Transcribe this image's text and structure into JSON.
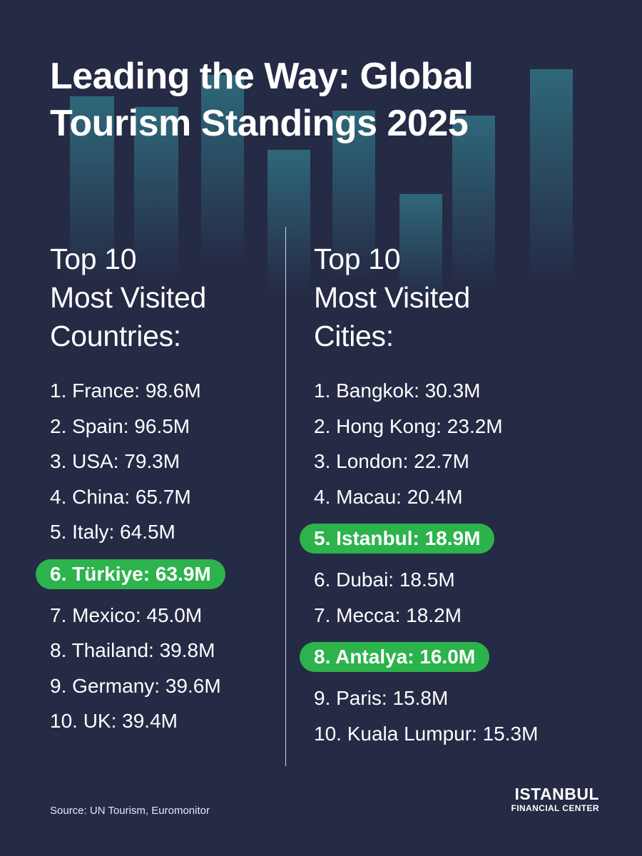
{
  "title": "Leading the Way: Global Tourism Standings 2025",
  "countries": {
    "heading": [
      "Top 10",
      "Most Visited",
      "Countries:"
    ],
    "items": [
      {
        "text": "1. France: 98.6M"
      },
      {
        "text": "2. Spain: 96.5M"
      },
      {
        "text": "3. USA: 79.3M"
      },
      {
        "text": "4. China: 65.7M"
      },
      {
        "text": "5. Italy: 64.5M"
      },
      {
        "text": "6. Türkiye: 63.9M",
        "highlight": true
      },
      {
        "text": "7. Mexico: 45.0M"
      },
      {
        "text": "8. Thailand: 39.8M"
      },
      {
        "text": "9. Germany: 39.6M"
      },
      {
        "text": "10. UK: 39.4M"
      }
    ]
  },
  "cities": {
    "heading": [
      "Top 10",
      "Most Visited",
      "Cities:"
    ],
    "items": [
      {
        "text": "1. Bangkok: 30.3M"
      },
      {
        "text": "2. Hong Kong: 23.2M"
      },
      {
        "text": "3. London: 22.7M"
      },
      {
        "text": "4. Macau: 20.4M"
      },
      {
        "text": "5. Istanbul: 18.9M",
        "highlight": true
      },
      {
        "text": "6. Dubai: 18.5M"
      },
      {
        "text": "7. Mecca: 18.2M"
      },
      {
        "text": "8. Antalya: 16.0M",
        "highlight": true
      },
      {
        "text": "9. Paris: 15.8M"
      },
      {
        "text": "10. Kuala Lumpur: 15.3M"
      }
    ]
  },
  "source": "Source: UN Tourism, Euromonitor",
  "logo": {
    "main": "ISTANBUL",
    "sub": "FINANCIAL CENTER"
  },
  "colors": {
    "background": "#252a45",
    "highlight": "#2cb34c",
    "decor_bars": "#2f6b7c"
  }
}
